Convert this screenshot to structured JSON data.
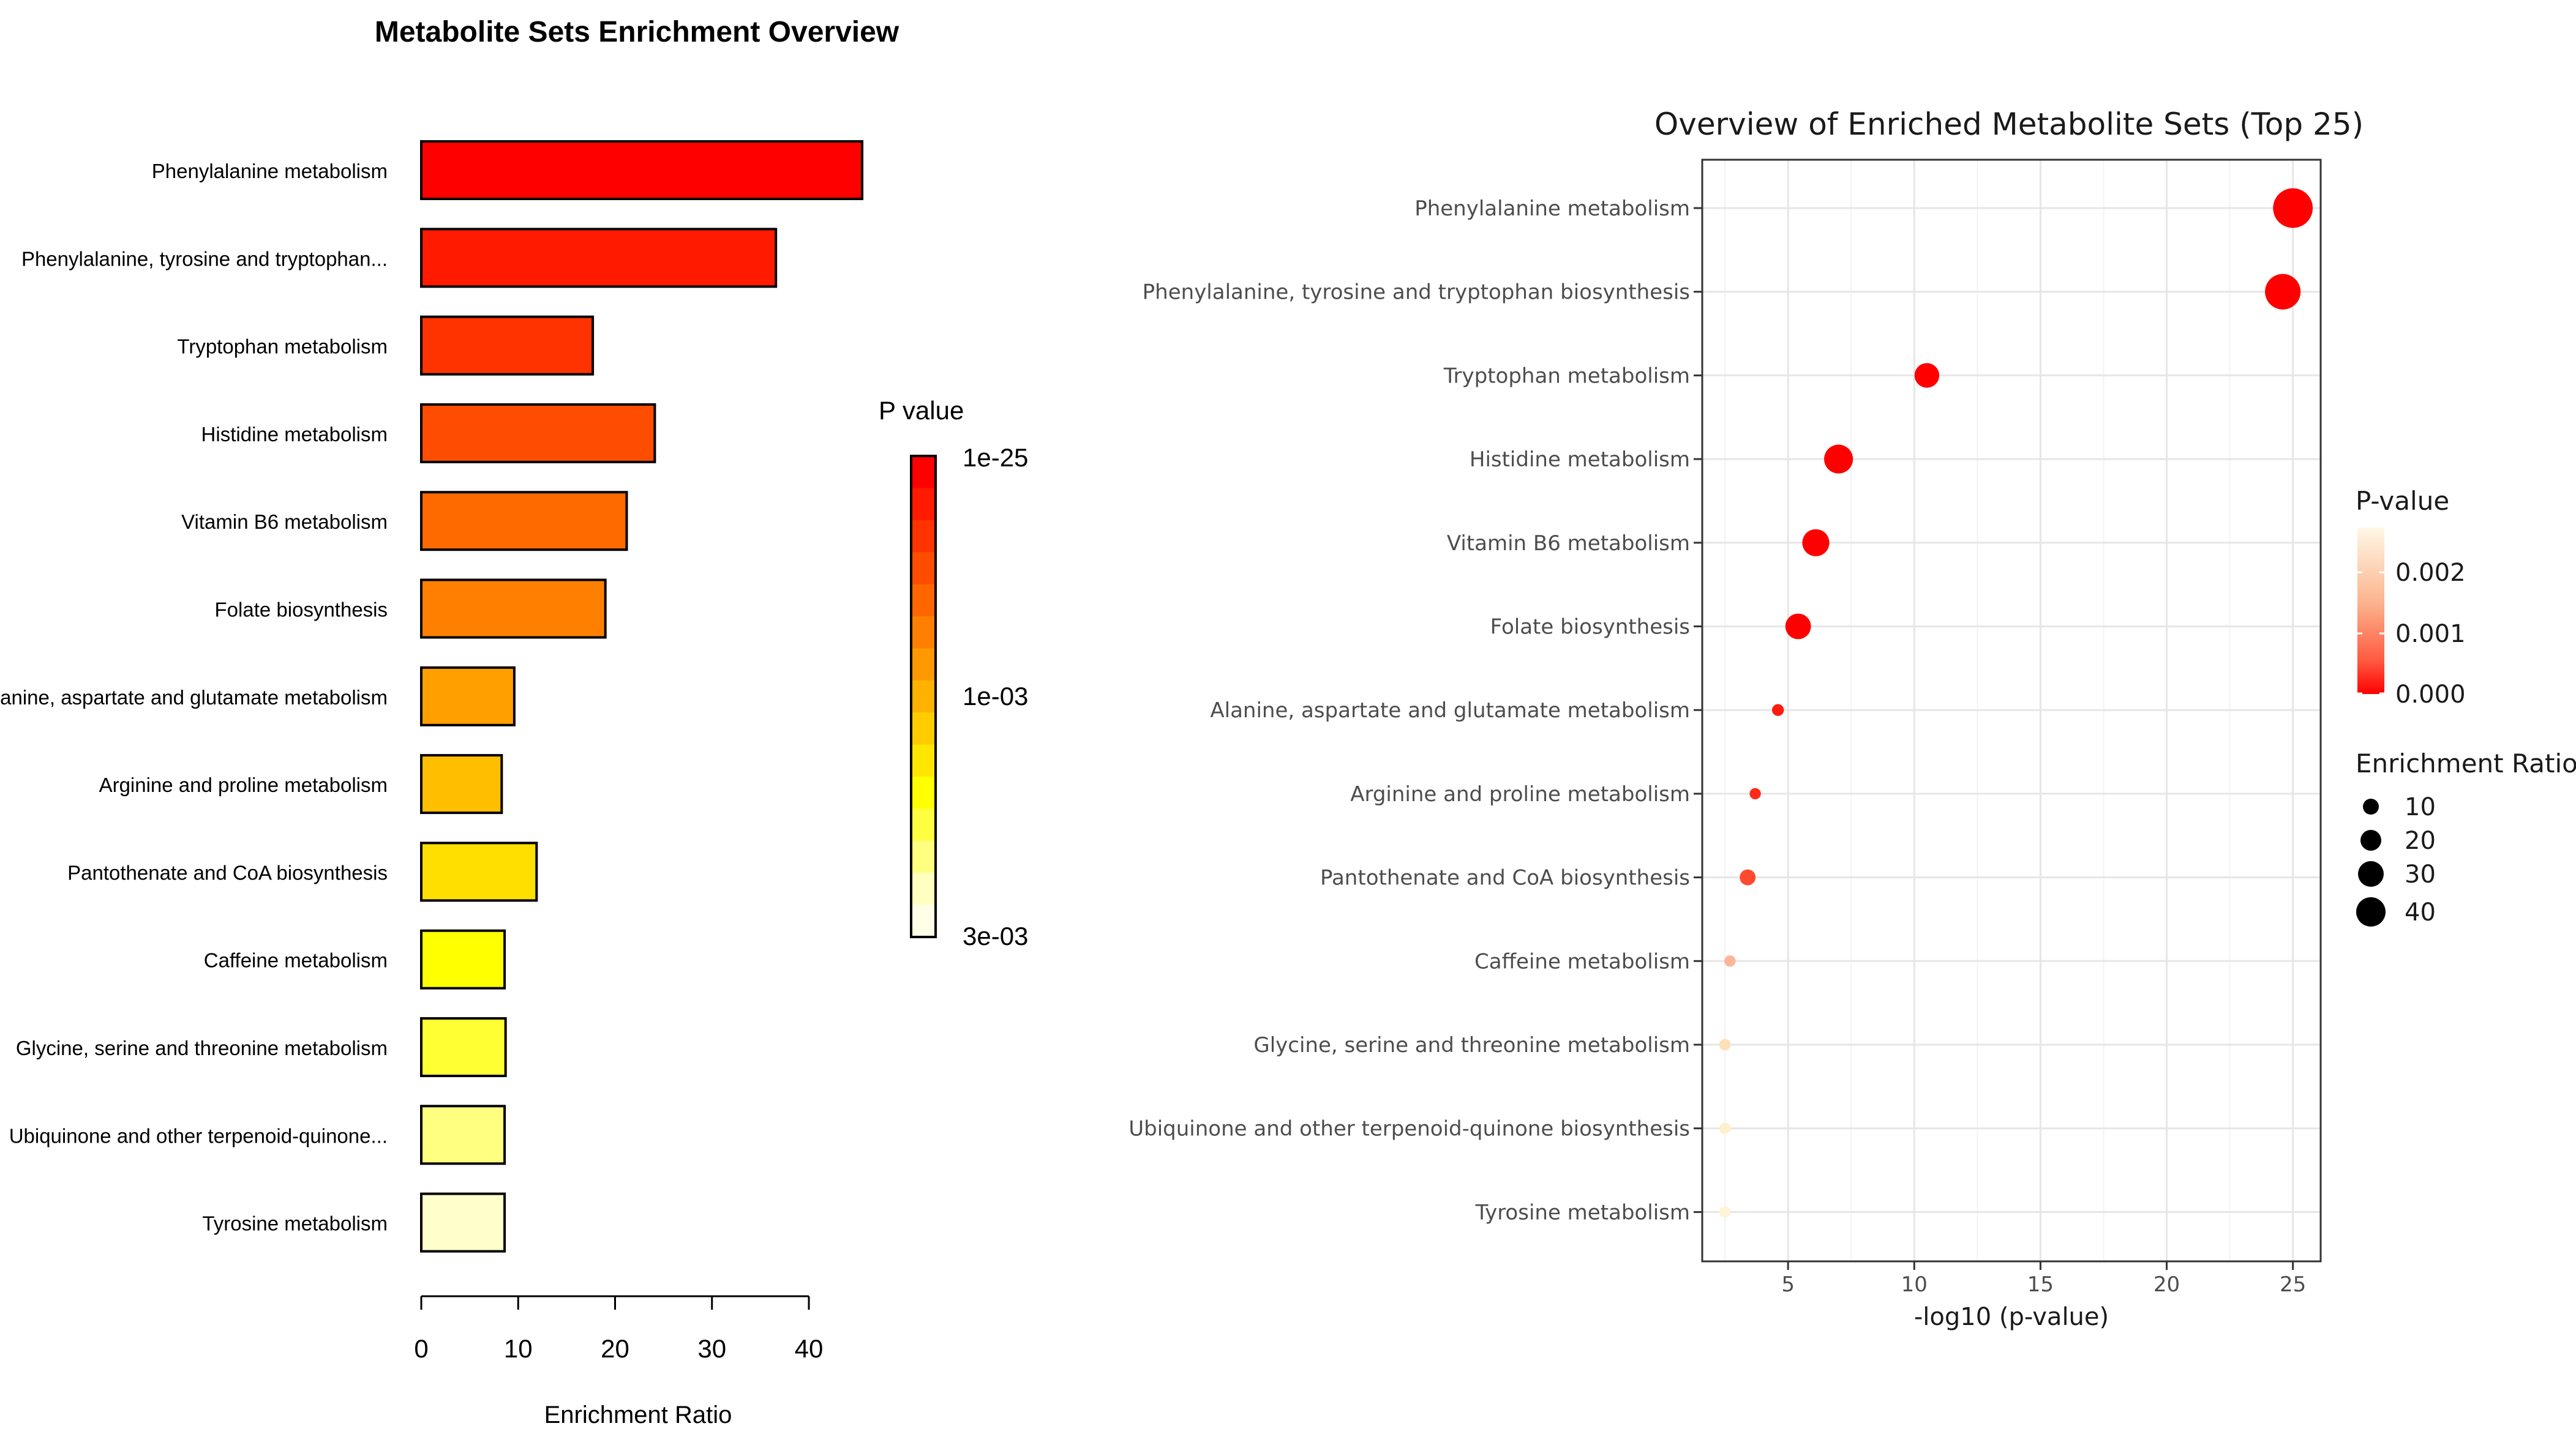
{
  "chart_data": [
    {
      "type": "bar",
      "title": "Metabolite Sets Enrichment Overview",
      "xlabel": "Enrichment Ratio",
      "ylabel": "",
      "xlim": [
        0,
        45
      ],
      "xticks": [
        0,
        10,
        20,
        30,
        40
      ],
      "xtick_labels": [
        "0",
        "10",
        "20",
        "30",
        "40"
      ],
      "categories": [
        "Phenylalanine metabolism",
        "Phenylalanine, tyrosine and tryptophan...",
        "Tryptophan metabolism",
        "Histidine metabolism",
        "Vitamin B6 metabolism",
        "Folate biosynthesis",
        "Alanine, aspartate and glutamate metabolism",
        "Arginine and proline metabolism",
        "Pantothenate and CoA biosynthesis",
        "Caffeine metabolism",
        "Glycine, serine and threonine metabolism",
        "Ubiquinone and other terpenoid-quinone...",
        "Tyrosine metabolism"
      ],
      "values": [
        45.5,
        36.6,
        17.7,
        24.1,
        21.2,
        19.0,
        9.6,
        8.3,
        11.9,
        8.6,
        8.7,
        8.6,
        8.6
      ],
      "bar_colors": [
        "#ff0000",
        "#ff1a00",
        "#ff3300",
        "#ff4d00",
        "#ff6a00",
        "#ff8000",
        "#ff9f00",
        "#ffbf00",
        "#ffdf00",
        "#ffff00",
        "#ffff33",
        "#ffff80",
        "#ffffcc"
      ],
      "colorbar": {
        "title": "P value",
        "tick_labels": [
          "1e-25",
          "1e-03",
          "3e-03"
        ],
        "colors": [
          "#ff0000",
          "#ff1a00",
          "#ff3300",
          "#ff4d00",
          "#ff6600",
          "#ff8000",
          "#ff9900",
          "#ffb300",
          "#ffcc00",
          "#ffe600",
          "#ffff00",
          "#ffff40",
          "#ffff80",
          "#ffffc0",
          "#ffffe8"
        ]
      }
    },
    {
      "type": "scatter",
      "title": "Overview of Enriched Metabolite Sets (Top 25)",
      "xlabel": "-log10 (p-value)",
      "ylabel": "",
      "xlim": [
        1.6,
        26.1
      ],
      "xticks": [
        5,
        10,
        15,
        20,
        25
      ],
      "xtick_labels": [
        "5",
        "10",
        "15",
        "20",
        "25"
      ],
      "categories": [
        "Phenylalanine metabolism",
        "Phenylalanine, tyrosine and tryptophan biosynthesis",
        "Tryptophan metabolism",
        "Histidine metabolism",
        "Vitamin B6 metabolism",
        "Folate biosynthesis",
        "Alanine, aspartate and glutamate metabolism",
        "Arginine and proline metabolism",
        "Pantothenate and CoA biosynthesis",
        "Caffeine metabolism",
        "Glycine, serine and threonine metabolism",
        "Ubiquinone and other terpenoid-quinone biosynthesis",
        "Tyrosine metabolism"
      ],
      "neg_log10_p": [
        25.0,
        24.6,
        10.5,
        7.0,
        6.1,
        5.4,
        4.6,
        3.7,
        3.4,
        2.7,
        2.5,
        2.5,
        2.5
      ],
      "enrichment_ratio": [
        45.5,
        36.6,
        17.7,
        24.1,
        21.2,
        19.0,
        9.6,
        8.3,
        11.9,
        8.6,
        8.7,
        8.6,
        8.6
      ],
      "point_colors": [
        "#ff0000",
        "#ff0000",
        "#ff0000",
        "#ff0000",
        "#ff0000",
        "#ff0000",
        "#ff1a0f",
        "#ff2a1a",
        "#ff4a30",
        "#fbb69a",
        "#fde0b8",
        "#fff0cc",
        "#fff4d6"
      ],
      "legend_pvalue": {
        "title": "P-value",
        "tick_labels": [
          "0.002",
          "0.001",
          "0.000"
        ]
      },
      "legend_size": {
        "title": "Enrichment Ratio",
        "labels": [
          "10",
          "20",
          "30",
          "40"
        ],
        "values": [
          10,
          20,
          30,
          40
        ]
      }
    }
  ]
}
